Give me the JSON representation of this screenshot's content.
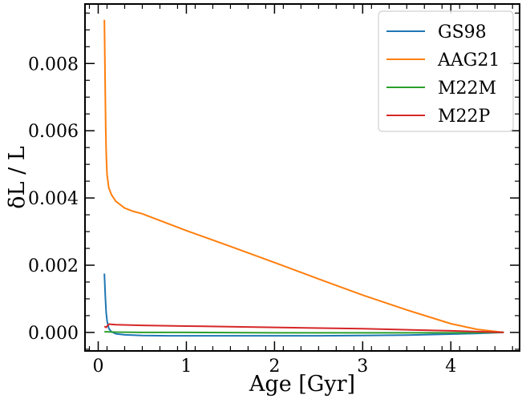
{
  "chart_data": {
    "type": "line",
    "xlabel": "Age [Gyr]",
    "ylabel": "δL / L",
    "xlim": [
      -0.15,
      4.78
    ],
    "ylim": [
      -0.00055,
      0.00977
    ],
    "xticks": [
      0,
      1,
      2,
      3,
      4
    ],
    "xtick_labels": [
      "0",
      "1",
      "2",
      "3",
      "4"
    ],
    "yticks": [
      0.0,
      0.002,
      0.004,
      0.006,
      0.008
    ],
    "ytick_labels": [
      "0.000",
      "0.002",
      "0.004",
      "0.006",
      "0.008"
    ],
    "grid": false,
    "legend_position": "top-right",
    "series": [
      {
        "name": "GS98",
        "color": "#1f77b4",
        "x": [
          0.07,
          0.08,
          0.09,
          0.1,
          0.12,
          0.15,
          0.2,
          0.3,
          0.5,
          0.8,
          1.0,
          1.5,
          2.0,
          2.5,
          3.0,
          3.5,
          4.0,
          4.3,
          4.6
        ],
        "y": [
          0.00175,
          0.0011,
          0.0006,
          0.00035,
          0.00012,
          2e-05,
          -4e-05,
          -7e-05,
          -9e-05,
          -0.0001,
          -0.0001,
          -0.0001,
          -0.0001,
          -0.0001,
          -9e-05,
          -8e-05,
          -5e-05,
          -3e-05,
          0.0
        ]
      },
      {
        "name": "AAG21",
        "color": "#ff7f0e",
        "x": [
          0.07,
          0.075,
          0.08,
          0.085,
          0.09,
          0.1,
          0.12,
          0.15,
          0.2,
          0.25,
          0.3,
          0.4,
          0.5,
          0.6,
          0.8,
          1.0,
          1.5,
          2.0,
          2.5,
          3.0,
          3.5,
          4.0,
          4.3,
          4.6
        ],
        "y": [
          0.0093,
          0.0082,
          0.0071,
          0.0061,
          0.0054,
          0.0047,
          0.0043,
          0.0041,
          0.0039,
          0.0038,
          0.0037,
          0.0036,
          0.00353,
          0.00343,
          0.00323,
          0.00303,
          0.00256,
          0.00208,
          0.00159,
          0.00111,
          0.00067,
          0.00026,
          9e-05,
          0.0
        ]
      },
      {
        "name": "M22M",
        "color": "#2ca02c",
        "x": [
          0.07,
          0.1,
          0.2,
          0.5,
          1.0,
          2.0,
          3.0,
          4.0,
          4.6
        ],
        "y": [
          2e-05,
          2e-05,
          1e-05,
          0.0,
          0.0,
          -1e-05,
          -1e-05,
          -1e-05,
          0.0
        ]
      },
      {
        "name": "M22P",
        "color": "#d62728",
        "x": [
          0.07,
          0.09,
          0.11,
          0.13,
          0.15,
          0.2,
          0.5,
          1.0,
          2.0,
          3.0,
          4.0,
          4.6
        ],
        "y": [
          0.00018,
          0.00015,
          0.00022,
          0.00025,
          0.00024,
          0.00023,
          0.00021,
          0.00019,
          0.00015,
          0.00011,
          5e-05,
          0.0
        ]
      }
    ]
  }
}
